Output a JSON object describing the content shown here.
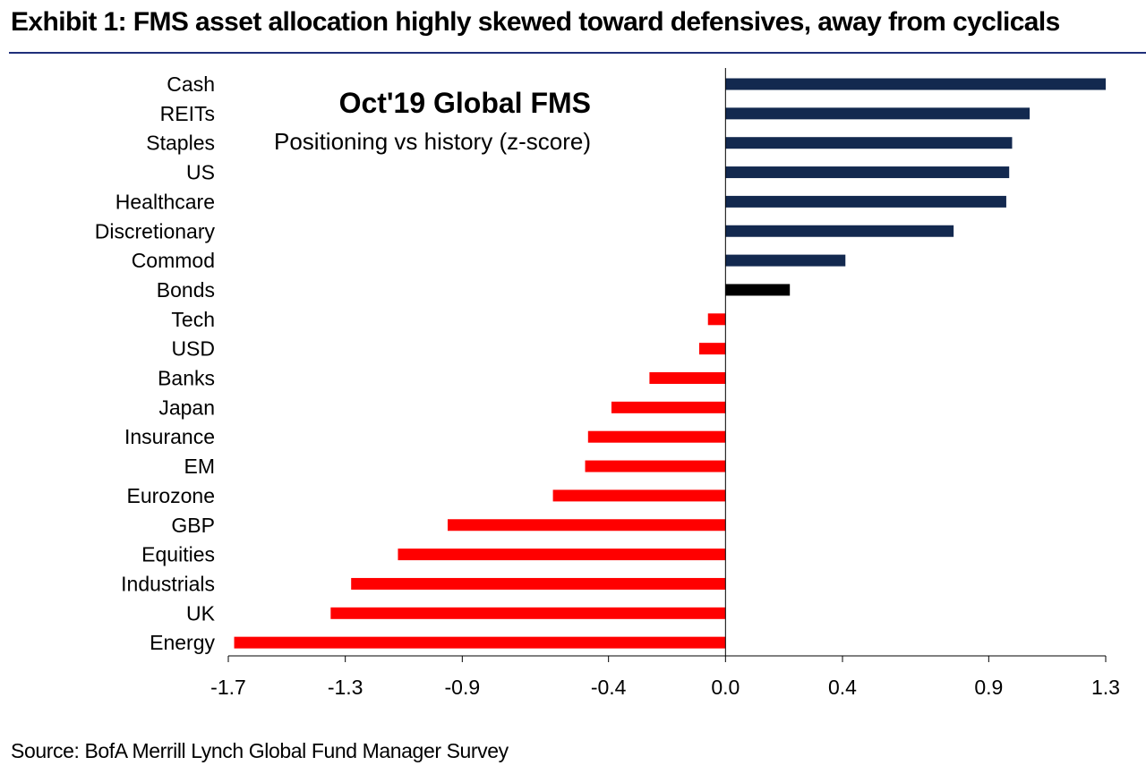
{
  "header": {
    "title": "Exhibit 1: FMS asset allocation highly skewed toward defensives, away from cyclicals"
  },
  "footer": {
    "source": "Source: BofA Merrill Lynch Global Fund Manager Survey"
  },
  "colors": {
    "positive": "#13294f",
    "highlight": "#000000",
    "negative": "#ff0000",
    "title_rule": "#1f2f7a"
  },
  "chart_data": {
    "type": "bar",
    "orientation": "horizontal",
    "title": "Oct'19 Global FMS",
    "subtitle": "Positioning vs history (z-score)",
    "xlabel": "",
    "ylabel": "",
    "xlim": [
      -1.7,
      1.3
    ],
    "xticks": [
      -1.7,
      -1.3,
      -0.9,
      -0.4,
      0.0,
      0.4,
      0.9,
      1.3
    ],
    "xtick_labels": [
      "-1.7",
      "-1.3",
      "-0.9",
      "-0.4",
      "0.0",
      "0.4",
      "0.9",
      "1.3"
    ],
    "grid": false,
    "categories": [
      "Cash",
      "REITs",
      "Staples",
      "US",
      "Healthcare",
      "Discretionary",
      "Commod",
      "Bonds",
      "Tech",
      "USD",
      "Banks",
      "Japan",
      "Insurance",
      "EM",
      "Eurozone",
      "GBP",
      "Equities",
      "Industrials",
      "UK",
      "Energy"
    ],
    "values": [
      1.3,
      1.04,
      0.98,
      0.97,
      0.96,
      0.78,
      0.41,
      0.22,
      -0.06,
      -0.09,
      -0.26,
      -0.39,
      -0.47,
      -0.48,
      -0.59,
      -0.95,
      -1.12,
      -1.28,
      -1.35,
      -1.68
    ],
    "bar_colors": [
      "positive",
      "positive",
      "positive",
      "positive",
      "positive",
      "positive",
      "positive",
      "highlight",
      "negative",
      "negative",
      "negative",
      "negative",
      "negative",
      "negative",
      "negative",
      "negative",
      "negative",
      "negative",
      "negative",
      "negative"
    ]
  }
}
